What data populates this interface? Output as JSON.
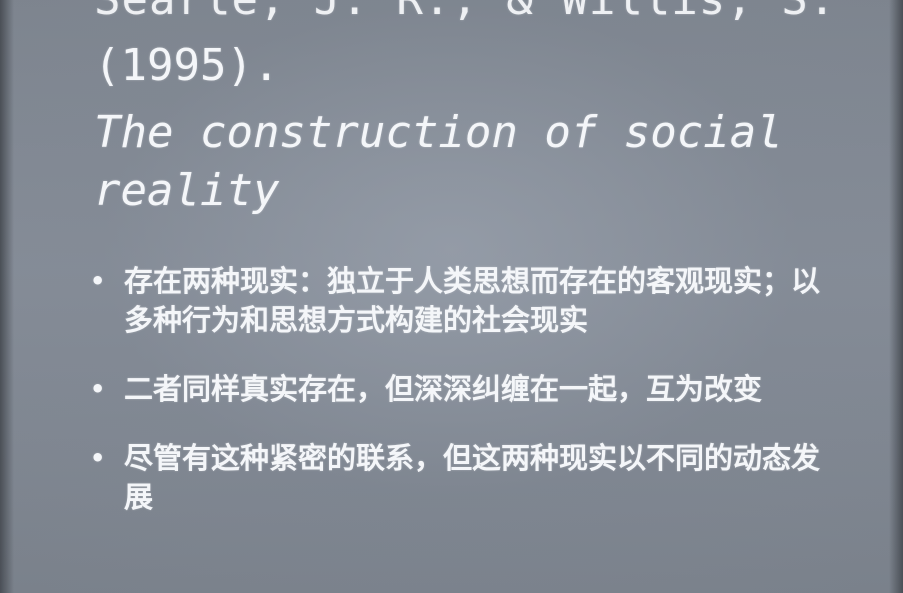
{
  "slide": {
    "reference": {
      "authors_line": "Searle, J. R., & Willis, S.",
      "year": "(1995).",
      "title": "The construction of social reality"
    },
    "bullets": [
      {
        "mark": "•",
        "text": "存在两种现实：独立于人类思想而存在的客观现实；以多种行为和思想方式构建的社会现实"
      },
      {
        "mark": "•",
        "text": "二者同样真实存在，但深深纠缠在一起，互为改变"
      },
      {
        "mark": "•",
        "text": "尽管有这种紧密的联系，但这两种现实以不同的动态发展"
      }
    ]
  }
}
